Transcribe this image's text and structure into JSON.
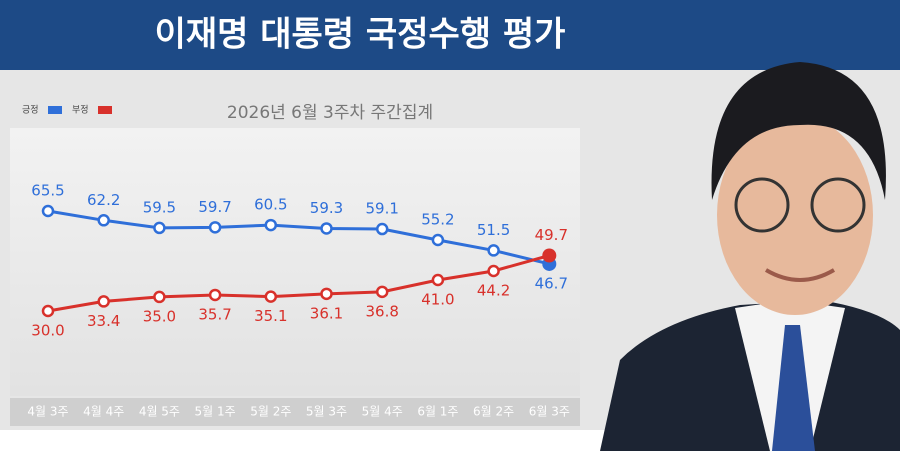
{
  "chart_data": {
    "type": "line",
    "title": "이재명 대통령 국정수행 평가",
    "subtitle": "2026년 6월 3주차 주간집계",
    "categories": [
      "4월 3주",
      "4월 4주",
      "4월 5주",
      "5월 1주",
      "5월 2주",
      "5월 3주",
      "5월 4주",
      "6월 1주",
      "6월 2주",
      "6월 3주"
    ],
    "series": [
      {
        "name": "긍정",
        "color": "#2f6fd9",
        "values": [
          65.5,
          62.2,
          59.5,
          59.7,
          60.5,
          59.3,
          59.1,
          55.2,
          51.5,
          46.7
        ]
      },
      {
        "name": "부정",
        "color": "#d8312b",
        "values": [
          30.0,
          33.4,
          35.0,
          35.7,
          35.1,
          36.1,
          36.8,
          41.0,
          44.2,
          49.7
        ],
        "value_labels": [
          "30.0",
          "33.4",
          "35.0",
          "35.7",
          "35.1",
          "36.1",
          "36.8",
          "41.0",
          "44.2",
          "49.7"
        ]
      }
    ],
    "legend": "top-left"
  }
}
